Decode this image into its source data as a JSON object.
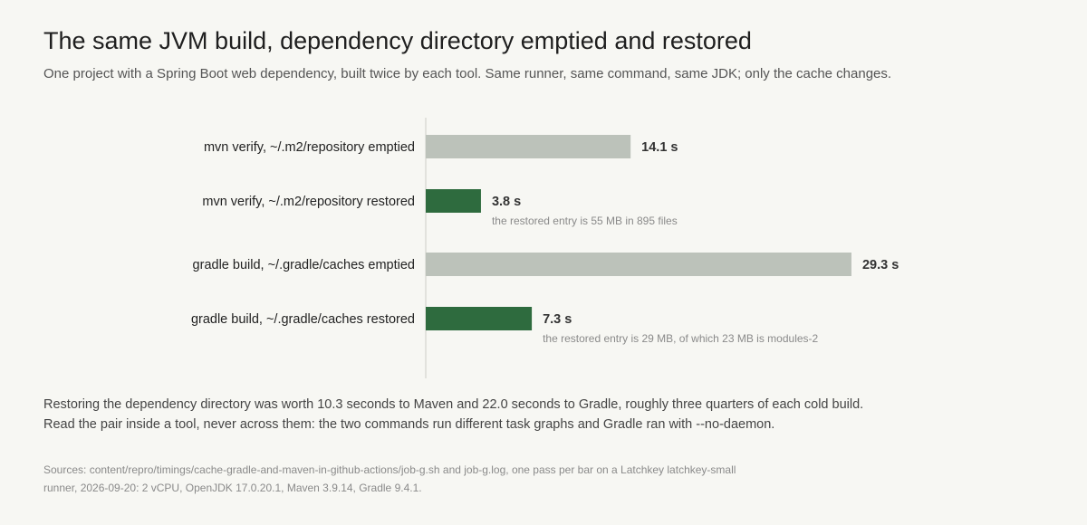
{
  "title": "The same JVM build, dependency directory emptied and restored",
  "subtitle": "One project with a Spring Boot web dependency, built twice by each tool. Same runner, same command, same JDK; only the cache changes.",
  "colors": {
    "emptied": "#bcc2ba",
    "restored": "#2e6b3e",
    "axis": "#dcdcd6"
  },
  "chart_data": {
    "type": "bar",
    "orientation": "horizontal",
    "categories": [
      "mvn verify, ~/.m2/repository emptied",
      "mvn verify, ~/.m2/repository restored",
      "gradle build, ~/.gradle/caches emptied",
      "gradle build, ~/.gradle/caches restored"
    ],
    "values": [
      14.1,
      3.8,
      29.3,
      7.3
    ],
    "value_labels": [
      "14.1 s",
      "3.8 s",
      "29.3 s",
      "7.3 s"
    ],
    "states": [
      "emptied",
      "restored",
      "emptied",
      "restored"
    ],
    "annotations": [
      "",
      "the restored entry is 55 MB in 895 files",
      "",
      "the restored entry is 29 MB, of which 23 MB is modules-2"
    ],
    "xlim": [
      0,
      30
    ],
    "grid": false
  },
  "note": "Restoring the dependency directory was worth 10.3 seconds to Maven and 22.0 seconds to Gradle, roughly three quarters of each cold build. Read the pair inside a tool, never across them: the two commands run different task graphs and Gradle ran with --no-daemon.",
  "sources": "Sources: content/repro/timings/cache-gradle-and-maven-in-github-actions/job-g.sh and job-g.log, one pass per bar on a Latchkey latchkey-small runner, 2026-09-20: 2 vCPU, OpenJDK 17.0.20.1, Maven 3.9.14, Gradle 9.4.1."
}
